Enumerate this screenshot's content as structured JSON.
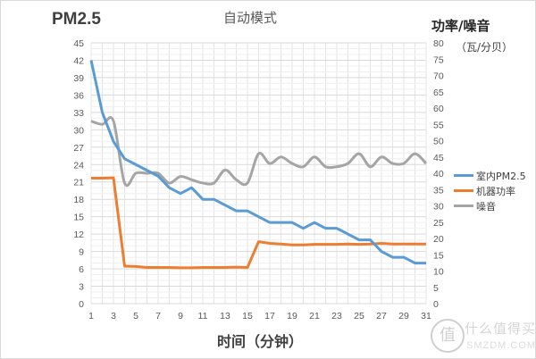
{
  "chart_data": {
    "type": "line",
    "title": "自动模式",
    "xlabel": "时间（分钟）",
    "ylabel_left": "PM2.5",
    "ylabel_right": "功率/噪音",
    "ylabel_right_unit": "（瓦/分贝）",
    "x": [
      1,
      2,
      3,
      4,
      5,
      6,
      7,
      8,
      9,
      10,
      11,
      12,
      13,
      14,
      15,
      16,
      17,
      18,
      19,
      20,
      21,
      22,
      23,
      24,
      25,
      26,
      27,
      28,
      29,
      30,
      31
    ],
    "x_tick_labels": [
      "1",
      "3",
      "5",
      "7",
      "9",
      "11",
      "13",
      "15",
      "17",
      "19",
      "21",
      "23",
      "25",
      "27",
      "29",
      "31"
    ],
    "ylim_left": [
      0,
      45
    ],
    "y_ticks_left": [
      0,
      3,
      6,
      9,
      12,
      15,
      18,
      21,
      24,
      27,
      30,
      33,
      36,
      39,
      42,
      45
    ],
    "ylim_right": [
      0,
      80
    ],
    "y_ticks_right": [
      0,
      5,
      10,
      15,
      20,
      25,
      30,
      35,
      40,
      45,
      50,
      55,
      60,
      65,
      70,
      75,
      80
    ],
    "grid": true,
    "legend_position": "right",
    "series": [
      {
        "name": "室内PM2.5",
        "axis": "left",
        "color": "#5b9bd5",
        "values": [
          42,
          33,
          28,
          25,
          24,
          23,
          22,
          20,
          19,
          20,
          18,
          18,
          17,
          16,
          16,
          15,
          14,
          14,
          14,
          13,
          14,
          13,
          13,
          12,
          11,
          11,
          9,
          8,
          8,
          7,
          7
        ]
      },
      {
        "name": "机器功率",
        "axis": "right",
        "color": "#ed7d31",
        "values": [
          38.5,
          38.5,
          38.6,
          11.5,
          11.4,
          11.1,
          11.1,
          11.1,
          11.0,
          11.0,
          11.1,
          11.1,
          11.1,
          11.2,
          11.1,
          19.0,
          18.5,
          18.3,
          18.0,
          18.0,
          18.2,
          18.2,
          18.2,
          18.3,
          18.2,
          18.3,
          18.5,
          18.3,
          18.3,
          18.3,
          18.3
        ]
      },
      {
        "name": "噪音",
        "axis": "right",
        "color": "#a5a5a5",
        "values": [
          56,
          55,
          56,
          37,
          40,
          40,
          40,
          37,
          39,
          38,
          37,
          37,
          41,
          38,
          37,
          46,
          43,
          45,
          43,
          42,
          45,
          42,
          42,
          43,
          46,
          42,
          45,
          43,
          43,
          46,
          43
        ]
      }
    ]
  },
  "watermark": {
    "badge": "值",
    "cn": "什么值得买",
    "en": "SMZDM.COM"
  }
}
